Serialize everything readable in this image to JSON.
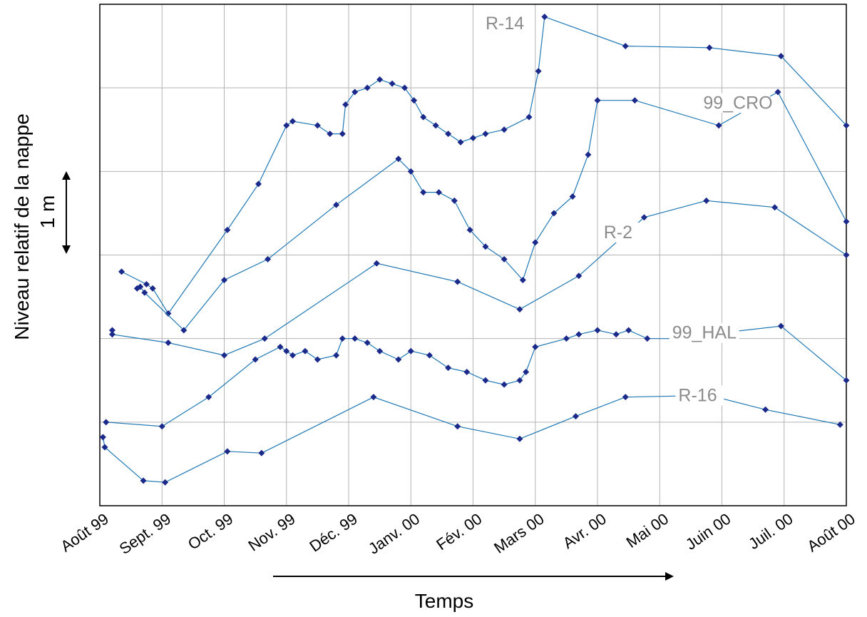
{
  "chart_data": {
    "type": "line",
    "xlabel": "Temps",
    "ylabel": "Niveau relatif de la nappe",
    "scale_label": "1 m",
    "x_ticks": [
      "Août 99",
      "Sept. 99",
      "Oct. 99",
      "Nov. 99",
      "Déc. 99",
      "Janv. 00",
      "Fév. 00",
      "Mars 00",
      "Avr. 00",
      "Mai 00",
      "Juin 00",
      "Juil. 00",
      "Août 00"
    ],
    "xlim": [
      0,
      12
    ],
    "ylim": [
      0,
      6
    ],
    "grid": true,
    "series": [
      {
        "name": "R-14",
        "label_at": [
          6.2,
          5.7
        ],
        "points": [
          [
            0.35,
            2.8
          ],
          [
            0.75,
            2.65
          ],
          [
            0.85,
            2.6
          ],
          [
            1.1,
            2.3
          ],
          [
            2.05,
            3.3
          ],
          [
            2.55,
            3.85
          ],
          [
            3.0,
            4.55
          ],
          [
            3.1,
            4.6
          ],
          [
            3.5,
            4.55
          ],
          [
            3.7,
            4.45
          ],
          [
            3.9,
            4.45
          ],
          [
            3.95,
            4.8
          ],
          [
            4.1,
            4.95
          ],
          [
            4.3,
            5.0
          ],
          [
            4.5,
            5.1
          ],
          [
            4.7,
            5.05
          ],
          [
            4.9,
            5.0
          ],
          [
            5.05,
            4.85
          ],
          [
            5.2,
            4.65
          ],
          [
            5.4,
            4.55
          ],
          [
            5.6,
            4.45
          ],
          [
            5.8,
            4.35
          ],
          [
            6.0,
            4.4
          ],
          [
            6.2,
            4.45
          ],
          [
            6.5,
            4.5
          ],
          [
            6.9,
            4.65
          ],
          [
            7.05,
            5.2
          ],
          [
            7.15,
            5.85
          ],
          [
            8.45,
            5.5
          ],
          [
            9.8,
            5.48
          ],
          [
            10.95,
            5.38
          ],
          [
            12.0,
            4.55
          ]
        ]
      },
      {
        "name": "99_CRO",
        "label_at": [
          9.7,
          4.75
        ],
        "points": [
          [
            0.6,
            2.6
          ],
          [
            0.65,
            2.62
          ],
          [
            0.72,
            2.55
          ],
          [
            1.35,
            2.1
          ],
          [
            2.0,
            2.7
          ],
          [
            2.7,
            2.95
          ],
          [
            3.8,
            3.6
          ],
          [
            4.8,
            4.15
          ],
          [
            5.0,
            4.0
          ],
          [
            5.2,
            3.75
          ],
          [
            5.45,
            3.75
          ],
          [
            5.7,
            3.65
          ],
          [
            5.95,
            3.3
          ],
          [
            6.2,
            3.1
          ],
          [
            6.5,
            2.95
          ],
          [
            6.8,
            2.7
          ],
          [
            7.0,
            3.15
          ],
          [
            7.3,
            3.5
          ],
          [
            7.6,
            3.7
          ],
          [
            7.85,
            4.2
          ],
          [
            8.0,
            4.85
          ],
          [
            8.6,
            4.85
          ],
          [
            9.95,
            4.55
          ],
          [
            10.9,
            4.95
          ],
          [
            12.0,
            3.4
          ]
        ]
      },
      {
        "name": "R-2",
        "label_at": [
          8.1,
          3.2
        ],
        "points": [
          [
            0.2,
            2.1
          ],
          [
            0.2,
            2.05
          ],
          [
            1.1,
            1.95
          ],
          [
            2.0,
            1.8
          ],
          [
            2.65,
            2.0
          ],
          [
            4.45,
            2.9
          ],
          [
            5.75,
            2.68
          ],
          [
            6.75,
            2.35
          ],
          [
            7.7,
            2.75
          ],
          [
            8.75,
            3.45
          ],
          [
            9.75,
            3.65
          ],
          [
            10.85,
            3.57
          ],
          [
            12.0,
            3.0
          ]
        ]
      },
      {
        "name": "99_HAL",
        "label_at": [
          9.2,
          2.0
        ],
        "points": [
          [
            0.1,
            1.0
          ],
          [
            1.0,
            0.95
          ],
          [
            1.75,
            1.3
          ],
          [
            2.5,
            1.75
          ],
          [
            2.9,
            1.9
          ],
          [
            3.0,
            1.85
          ],
          [
            3.1,
            1.8
          ],
          [
            3.3,
            1.85
          ],
          [
            3.5,
            1.75
          ],
          [
            3.8,
            1.8
          ],
          [
            3.9,
            2.0
          ],
          [
            4.1,
            2.0
          ],
          [
            4.3,
            1.95
          ],
          [
            4.5,
            1.85
          ],
          [
            4.8,
            1.75
          ],
          [
            5.0,
            1.85
          ],
          [
            5.3,
            1.8
          ],
          [
            5.6,
            1.65
          ],
          [
            5.9,
            1.6
          ],
          [
            6.2,
            1.5
          ],
          [
            6.5,
            1.45
          ],
          [
            6.75,
            1.5
          ],
          [
            6.85,
            1.6
          ],
          [
            7.0,
            1.9
          ],
          [
            7.5,
            2.0
          ],
          [
            7.7,
            2.05
          ],
          [
            8.0,
            2.1
          ],
          [
            8.3,
            2.05
          ],
          [
            8.5,
            2.1
          ],
          [
            8.8,
            2.0
          ],
          [
            9.2,
            2.0
          ],
          [
            10.95,
            2.15
          ],
          [
            12.0,
            1.5
          ]
        ]
      },
      {
        "name": "R-16",
        "label_at": [
          9.3,
          1.25
        ],
        "points": [
          [
            0.05,
            0.82
          ],
          [
            0.08,
            0.7
          ],
          [
            0.7,
            0.3
          ],
          [
            1.05,
            0.28
          ],
          [
            2.05,
            0.65
          ],
          [
            2.6,
            0.63
          ],
          [
            4.4,
            1.3
          ],
          [
            5.75,
            0.95
          ],
          [
            6.75,
            0.8
          ],
          [
            7.65,
            1.07
          ],
          [
            8.45,
            1.3
          ],
          [
            9.8,
            1.32
          ],
          [
            10.7,
            1.15
          ],
          [
            11.9,
            0.97
          ]
        ]
      }
    ]
  }
}
